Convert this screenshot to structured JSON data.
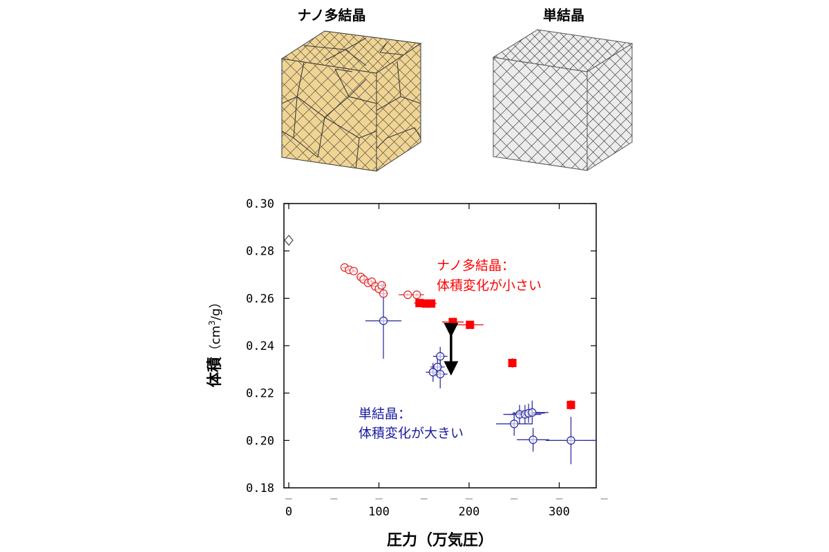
{
  "cubes": {
    "left_label": "ナノ多結晶",
    "right_label": "単結晶",
    "left_color": "#efd494",
    "right_color": "#ececec"
  },
  "chart_data": {
    "type": "scatter",
    "xlabel": "圧力（万気圧）",
    "ylabel_main": "体積",
    "ylabel_unit_pre": "（cm",
    "ylabel_unit_sup": "3",
    "ylabel_unit_post": "/g）",
    "xlim": [
      0,
      350
    ],
    "ylim": [
      0.18,
      0.3
    ],
    "xticks": [
      0,
      100,
      200,
      300
    ],
    "yticks": [
      0.18,
      0.2,
      0.22,
      0.24,
      0.26,
      0.28,
      0.3
    ],
    "ytick_labels": [
      "0.18",
      "0.20",
      "0.22",
      "0.24",
      "0.26",
      "0.28",
      "0.30"
    ],
    "xtick_labels": [
      "0",
      "100",
      "200",
      "300"
    ],
    "series": [
      {
        "marker": "open-diamond",
        "color": "#555555",
        "points": [
          [
            0,
            0.2845
          ]
        ]
      },
      {
        "marker": "open-circle",
        "color": "#e03030",
        "points": [
          [
            62,
            0.273
          ],
          [
            67,
            0.272
          ],
          [
            72,
            0.2715
          ],
          [
            80,
            0.269
          ],
          [
            83,
            0.268
          ],
          [
            88,
            0.2665
          ],
          [
            92,
            0.267
          ],
          [
            96,
            0.265
          ],
          [
            100,
            0.264
          ],
          [
            103,
            0.2655
          ],
          [
            105,
            0.262
          ],
          [
            132,
            0.2615
          ],
          [
            142,
            0.2615
          ]
        ],
        "xerr": [
          3,
          3,
          3,
          5,
          5,
          5,
          5,
          5,
          5,
          5,
          5,
          10,
          8
        ],
        "yerr": [
          0.0005,
          0.0005,
          0.0005,
          0.0005,
          0.0005,
          0.0005,
          0.0005,
          0.0005,
          0.0005,
          0.0005,
          0.0005,
          0.0005,
          0.0005
        ]
      },
      {
        "marker": "filled-square",
        "color": "#ff0000",
        "points": [
          [
            145,
            0.258
          ],
          [
            152,
            0.2578
          ],
          [
            158,
            0.2578
          ],
          [
            182,
            0.25
          ],
          [
            201,
            0.2488
          ],
          [
            248,
            0.2327
          ],
          [
            313,
            0.215
          ]
        ],
        "xerr": [
          6,
          6,
          6,
          12,
          15,
          4,
          4
        ],
        "yerr": [
          0.001,
          0.001,
          0.001,
          0.001,
          0.001,
          0.002,
          0.002
        ]
      },
      {
        "marker": "open-circle",
        "color": "#3030a0",
        "points": [
          [
            105,
            0.2505
          ],
          [
            168,
            0.2355
          ],
          [
            165,
            0.231
          ],
          [
            160,
            0.2288
          ],
          [
            168,
            0.228
          ],
          [
            250,
            0.207
          ],
          [
            256,
            0.211
          ],
          [
            262,
            0.211
          ],
          [
            266,
            0.2115
          ],
          [
            270,
            0.2118
          ],
          [
            271,
            0.2003
          ],
          [
            313,
            0.2
          ]
        ],
        "xerr": [
          20,
          8,
          8,
          8,
          8,
          20,
          18,
          18,
          18,
          18,
          18,
          28
        ],
        "yerr": [
          0.016,
          0.004,
          0.004,
          0.004,
          0.006,
          0.005,
          0.004,
          0.004,
          0.004,
          0.005,
          0.005,
          0.01
        ]
      }
    ],
    "arrow": {
      "x": 180,
      "y1": 0.2495,
      "y2": 0.2275
    },
    "annotations": [
      {
        "lines": [
          "ナノ多結晶：",
          "体積変化が小さい"
        ],
        "color": "#ff0000"
      },
      {
        "lines": [
          "単結晶：",
          "体積変化が大きい"
        ],
        "color": "#1a1aa0"
      }
    ]
  }
}
